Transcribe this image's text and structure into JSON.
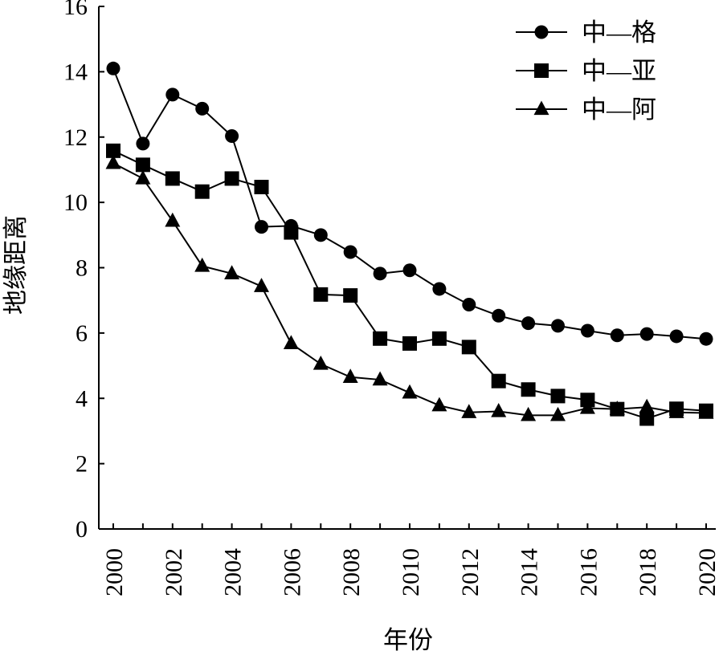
{
  "chart_data": {
    "type": "line",
    "title": "",
    "xlabel": "年份",
    "ylabel": "地缘距离",
    "ylim": [
      0,
      16
    ],
    "yticks": [
      0,
      2,
      4,
      6,
      8,
      10,
      12,
      14,
      16
    ],
    "xticks": [
      2000,
      2002,
      2004,
      2006,
      2008,
      2010,
      2012,
      2014,
      2016,
      2018,
      2020
    ],
    "grid": false,
    "legend_position": "top-right",
    "x": [
      2000,
      2001,
      2002,
      2003,
      2004,
      2005,
      2006,
      2007,
      2008,
      2009,
      2010,
      2011,
      2012,
      2013,
      2014,
      2015,
      2016,
      2017,
      2018,
      2019,
      2020
    ],
    "series": [
      {
        "name": "中—格",
        "marker": "circle",
        "values": [
          14.1,
          11.8,
          13.3,
          12.87,
          12.03,
          9.25,
          9.28,
          9.0,
          8.48,
          7.82,
          7.92,
          7.35,
          6.87,
          6.53,
          6.3,
          6.22,
          6.07,
          5.93,
          5.97,
          5.9,
          5.82
        ]
      },
      {
        "name": "中—亚",
        "marker": "square",
        "values": [
          11.58,
          11.15,
          10.73,
          10.33,
          10.73,
          10.47,
          9.08,
          7.18,
          7.15,
          5.83,
          5.68,
          5.83,
          5.57,
          4.53,
          4.27,
          4.07,
          3.95,
          3.67,
          3.38,
          3.68,
          3.62
        ]
      },
      {
        "name": "中—阿",
        "marker": "triangle",
        "values": [
          11.2,
          10.73,
          9.43,
          8.05,
          7.82,
          7.43,
          5.68,
          5.05,
          4.65,
          4.57,
          4.17,
          3.78,
          3.57,
          3.6,
          3.48,
          3.48,
          3.7,
          3.67,
          3.73,
          3.57,
          3.55
        ]
      }
    ]
  }
}
